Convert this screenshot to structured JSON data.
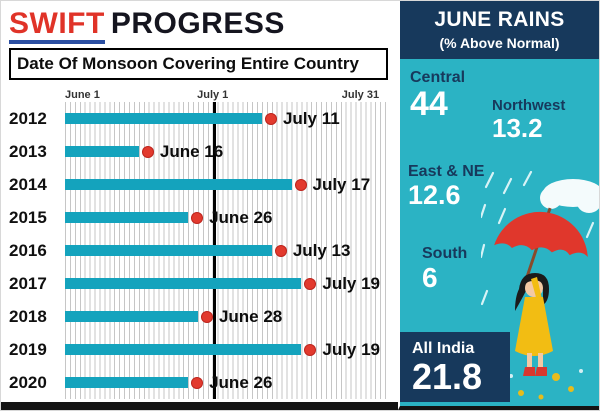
{
  "header": {
    "title_red": "SWIFT",
    "title_dark": "PROGRESS",
    "subtitle": "Date Of Monsoon Covering Entire Country"
  },
  "chart_data": {
    "type": "bar",
    "orientation": "horizontal",
    "title": "Date Of Monsoon Covering Entire Country",
    "x_axis": {
      "ticks": [
        "June 1",
        "July 1",
        "July 31"
      ],
      "unit": "date",
      "range_days_from_june1": [
        0,
        60
      ]
    },
    "rows": [
      {
        "year": "2012",
        "date": "July 11",
        "days_from_june1": 40
      },
      {
        "year": "2013",
        "date": "June 16",
        "days_from_june1": 15
      },
      {
        "year": "2014",
        "date": "July 17",
        "days_from_june1": 46
      },
      {
        "year": "2015",
        "date": "June 26",
        "days_from_june1": 25
      },
      {
        "year": "2016",
        "date": "July 13",
        "days_from_june1": 42
      },
      {
        "year": "2017",
        "date": "July 19",
        "days_from_june1": 48
      },
      {
        "year": "2018",
        "date": "June 28",
        "days_from_june1": 27
      },
      {
        "year": "2019",
        "date": "July 19",
        "days_from_june1": 48
      },
      {
        "year": "2020",
        "date": "June 26",
        "days_from_june1": 25
      }
    ],
    "bar_color": "#14a3bd",
    "dot_color": "#e23a2e",
    "grid": true,
    "july1_line_color": "#000000"
  },
  "side_panel": {
    "title": "JUNE RAINS",
    "subtitle": "(% Above Normal)",
    "stats": [
      {
        "label": "Central",
        "value": "44"
      },
      {
        "label": "Northwest",
        "value": "13.2"
      },
      {
        "label": "East & NE",
        "value": "12.6"
      },
      {
        "label": "South",
        "value": "6"
      }
    ],
    "all_india": {
      "label": "All India",
      "value": "21.8"
    },
    "panel_color": "#2bb3c4",
    "header_color": "#17395c"
  },
  "colors": {
    "title_red": "#e03328",
    "underline_blue": "#2b4fa2",
    "text_dark": "#15151f"
  }
}
